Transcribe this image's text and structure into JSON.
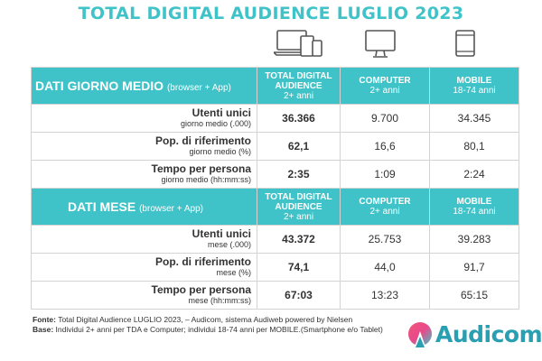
{
  "title": "TOTAL DIGITAL AUDIENCE LUGLIO 2023",
  "icons": [
    "laptop-tablet-phone-icon",
    "computer-monitor-icon",
    "mobile-devices-icon"
  ],
  "sections": [
    {
      "name": "DATI GIORNO MEDIO",
      "note": "(browser + App)",
      "headers": [
        {
          "line1": "TOTAL DIGITAL",
          "line2": "AUDIENCE",
          "line3": "2+ anni"
        },
        {
          "line1": "COMPUTER",
          "line2": "2+ anni",
          "line3": ""
        },
        {
          "line1": "MOBILE",
          "line2": "18-74 anni",
          "line3": ""
        }
      ],
      "rows": [
        {
          "label": "Utenti unici",
          "sub": "giorno medio (.000)",
          "tda": "36.366",
          "computer": "9.700",
          "mobile": "34.345"
        },
        {
          "label": "Pop. di riferimento",
          "sub": "giorno medio (%)",
          "tda": "62,1",
          "computer": "16,6",
          "mobile": "80,1"
        },
        {
          "label": "Tempo per persona",
          "sub": "giorno medio (hh:mm:ss)",
          "tda": "2:35",
          "computer": "1:09",
          "mobile": "2:24"
        }
      ]
    },
    {
      "name": "DATI MESE",
      "note": "(browser + App)",
      "headers": [
        {
          "line1": "TOTAL DIGITAL",
          "line2": "AUDIENCE",
          "line3": "2+ anni"
        },
        {
          "line1": "COMPUTER",
          "line2": "2+ anni",
          "line3": ""
        },
        {
          "line1": "MOBILE",
          "line2": "18-74 anni",
          "line3": ""
        }
      ],
      "rows": [
        {
          "label": "Utenti unici",
          "sub": "mese (.000)",
          "tda": "43.372",
          "computer": "25.753",
          "mobile": "39.283"
        },
        {
          "label": "Pop. di riferimento",
          "sub": "mese (%)",
          "tda": "74,1",
          "computer": "44,0",
          "mobile": "91,7"
        },
        {
          "label": "Tempo per persona",
          "sub": "mese (hh:mm:ss)",
          "tda": "67:03",
          "computer": "13:23",
          "mobile": "65:15"
        }
      ]
    }
  ],
  "footer": {
    "fonte_label": "Fonte:",
    "fonte_text": "Total Digital Audience LUGLIO 2023, – Audicom, sistema Audiweb powered by Nielsen",
    "base_label": "Base:",
    "base_text": "Individui 2+ anni per TDA e Computer; individui 18-74 anni per MOBILE.(Smartphone e/o Tablet)"
  },
  "logo": {
    "text": "Audicom"
  },
  "colors": {
    "accent": "#3fc3c8",
    "logo_text": "#2a9fb1"
  }
}
